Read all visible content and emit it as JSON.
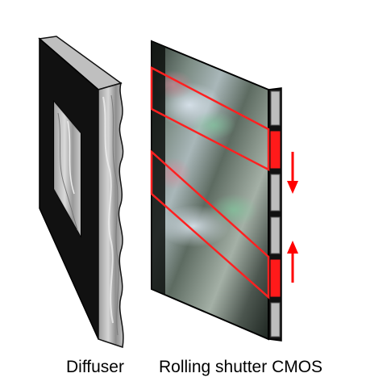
{
  "labels": {
    "diffuser": "Diffuser",
    "sensor": "Rolling shutter CMOS"
  },
  "colors": {
    "frame": "#111111",
    "diffuser_surface": "#c8c8c8",
    "highlight": "#ff1a1a",
    "arrow": "#ff0000",
    "readout_cell": "#bdbdbd"
  },
  "sensor": {
    "readout_segments": 6,
    "active_segments": [
      2,
      5
    ],
    "arrows": [
      "down",
      "up"
    ]
  }
}
